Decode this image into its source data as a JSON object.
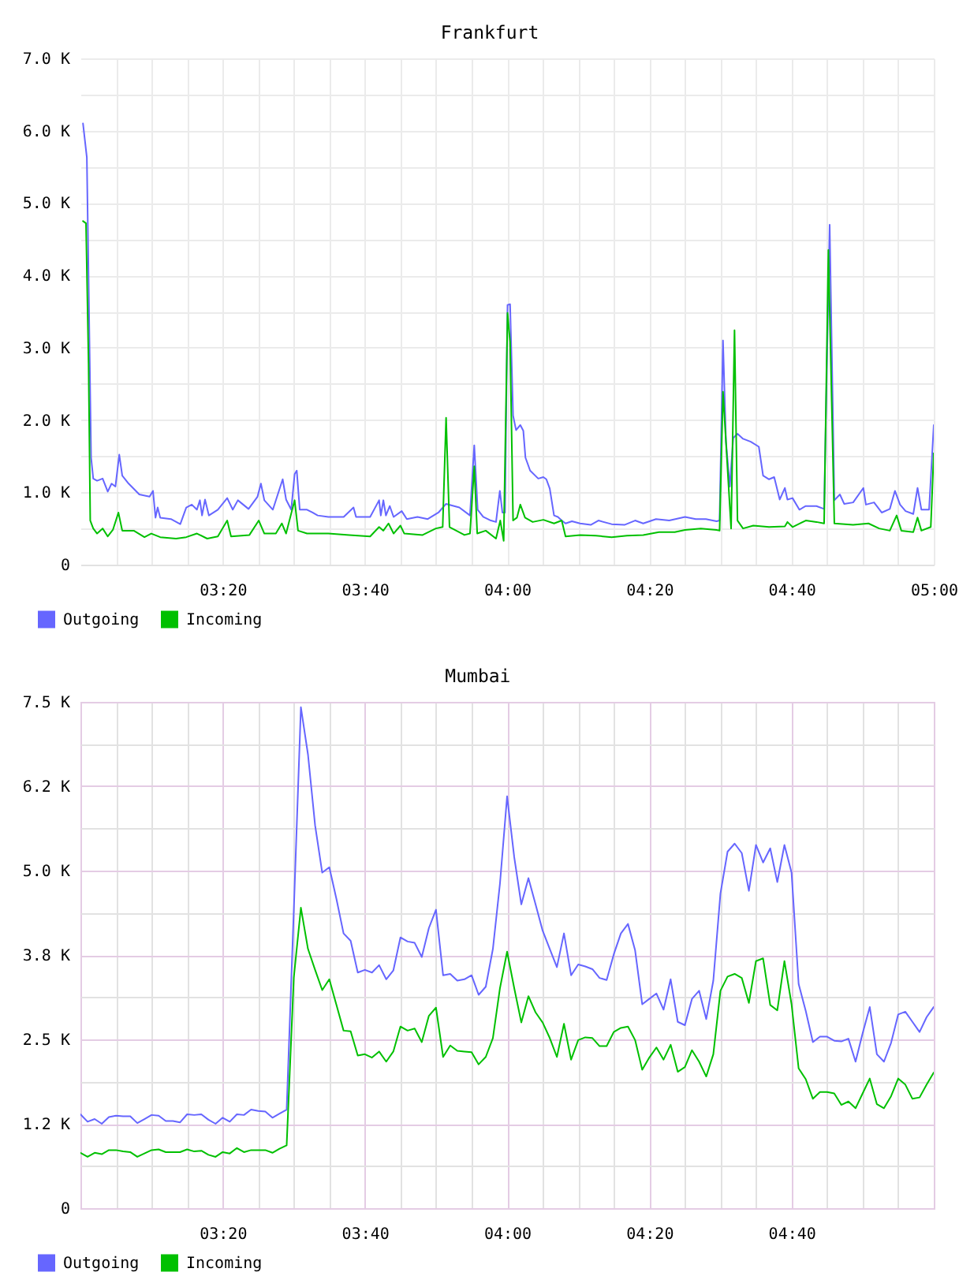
{
  "chart_data": [
    {
      "type": "line",
      "title": "Frankfurt",
      "series": [
        {
          "name": "Outgoing",
          "color": "#6666ff",
          "x": [
            3.006,
            3.015,
            3.025,
            3.03,
            3.039,
            3.052,
            3.064,
            3.073,
            3.082,
            3.091,
            3.098,
            3.113,
            3.138,
            3.162,
            3.17,
            3.176,
            3.181,
            3.187,
            3.212,
            3.234,
            3.248,
            3.261,
            3.273,
            3.28,
            3.285,
            3.292,
            3.301,
            3.322,
            3.344,
            3.357,
            3.369,
            3.394,
            3.415,
            3.423,
            3.431,
            3.451,
            3.474,
            3.482,
            3.494,
            3.502,
            3.507,
            3.514,
            3.531,
            3.544,
            3.556,
            3.581,
            3.617,
            3.64,
            3.646,
            3.679,
            3.7,
            3.704,
            3.71,
            3.716,
            3.725,
            3.734,
            3.753,
            3.765,
            3.79,
            3.814,
            3.839,
            3.857,
            3.888,
            3.913,
            3.923,
            3.931,
            3.944,
            3.962,
            3.974,
            3.983,
            3.989,
            3.995,
            4.001,
            4.007,
            4.014,
            4.021,
            4.031,
            4.038,
            4.043,
            4.054,
            4.073,
            4.085,
            4.092,
            4.1,
            4.11,
            4.119,
            4.128,
            4.137,
            4.152,
            4.171,
            4.196,
            4.214,
            4.245,
            4.275,
            4.3,
            4.319,
            4.349,
            4.38,
            4.417,
            4.442,
            4.466,
            4.491,
            4.498,
            4.506,
            4.513,
            4.522,
            4.53,
            4.54,
            4.553,
            4.571,
            4.59,
            4.6,
            4.614,
            4.626,
            4.639,
            4.651,
            4.657,
            4.669,
            4.685,
            4.7,
            4.725,
            4.743,
            4.756,
            4.767,
            4.78,
            4.79,
            4.811,
            4.835,
            4.841,
            4.86,
            4.878,
            4.897,
            4.909,
            4.921,
            4.934,
            4.952,
            4.962,
            4.971,
            4.989,
            5.0
          ],
          "values": [
            6100,
            5630,
            1480,
            1190,
            1160,
            1190,
            1010,
            1120,
            1080,
            1520,
            1230,
            1120,
            970,
            940,
            1020,
            650,
            790,
            650,
            630,
            560,
            790,
            830,
            760,
            890,
            680,
            900,
            680,
            760,
            920,
            760,
            890,
            770,
            940,
            1120,
            890,
            760,
            1180,
            900,
            760,
            1250,
            1300,
            760,
            760,
            720,
            680,
            660,
            660,
            790,
            660,
            660,
            890,
            680,
            890,
            680,
            810,
            660,
            740,
            630,
            660,
            630,
            720,
            840,
            790,
            680,
            1650,
            760,
            660,
            610,
            590,
            1020,
            720,
            720,
            3590,
            3600,
            2060,
            1860,
            1930,
            1850,
            1480,
            1300,
            1190,
            1210,
            1180,
            1050,
            680,
            660,
            610,
            570,
            600,
            570,
            550,
            610,
            560,
            550,
            610,
            570,
            630,
            610,
            660,
            630,
            630,
            600,
            610,
            3100,
            1700,
            1080,
            1750,
            1810,
            1740,
            1700,
            1630,
            1230,
            1180,
            1210,
            900,
            1060,
            900,
            920,
            760,
            810,
            810,
            770,
            4700,
            890,
            970,
            840,
            860,
            1060,
            830,
            860,
            720,
            770,
            1020,
            830,
            740,
            700,
            1060,
            760,
            760,
            1930
          ]
        },
        {
          "name": "Incoming",
          "color": "#00c000",
          "x": [
            3.006,
            3.013,
            3.019,
            3.023,
            3.03,
            3.039,
            3.052,
            3.064,
            3.076,
            3.089,
            3.098,
            3.125,
            3.15,
            3.166,
            3.187,
            3.224,
            3.248,
            3.273,
            3.297,
            3.322,
            3.344,
            3.353,
            3.396,
            3.418,
            3.431,
            3.458,
            3.472,
            3.482,
            3.502,
            3.51,
            3.531,
            3.581,
            3.63,
            3.679,
            3.7,
            3.71,
            3.722,
            3.734,
            3.75,
            3.759,
            3.802,
            3.833,
            3.849,
            3.857,
            3.865,
            3.9,
            3.913,
            3.923,
            3.93,
            3.95,
            3.974,
            3.984,
            3.992,
            4.001,
            4.007,
            4.014,
            4.023,
            4.031,
            4.042,
            4.06,
            4.085,
            4.11,
            4.128,
            4.137,
            4.171,
            4.208,
            4.245,
            4.281,
            4.319,
            4.356,
            4.393,
            4.417,
            4.454,
            4.491,
            4.498,
            4.506,
            4.525,
            4.533,
            4.54,
            4.553,
            4.577,
            4.614,
            4.651,
            4.657,
            4.669,
            4.7,
            4.725,
            4.743,
            4.753,
            4.767,
            4.811,
            4.847,
            4.872,
            4.897,
            4.913,
            4.924,
            4.952,
            4.962,
            4.971,
            4.993,
            5.0
          ],
          "values": [
            4750,
            4720,
            2790,
            610,
            500,
            430,
            500,
            390,
            480,
            720,
            470,
            470,
            380,
            430,
            380,
            360,
            380,
            430,
            360,
            390,
            610,
            390,
            410,
            610,
            430,
            430,
            570,
            430,
            890,
            470,
            430,
            430,
            410,
            390,
            520,
            470,
            570,
            430,
            540,
            430,
            410,
            500,
            520,
            2030,
            520,
            410,
            430,
            1360,
            430,
            470,
            360,
            610,
            330,
            3480,
            3080,
            610,
            650,
            830,
            650,
            590,
            620,
            570,
            610,
            390,
            410,
            400,
            380,
            400,
            410,
            450,
            450,
            480,
            500,
            480,
            470,
            2390,
            500,
            3240,
            610,
            500,
            540,
            520,
            530,
            590,
            520,
            610,
            590,
            570,
            4350,
            570,
            550,
            570,
            500,
            470,
            680,
            470,
            450,
            650,
            470,
            520,
            1540
          ]
        }
      ],
      "xlim": [
        3,
        5
      ],
      "xticks": [
        {
          "value": 3.0833,
          "label": null
        },
        {
          "value": 3.1667,
          "label": null
        },
        {
          "value": 3.25,
          "label": null
        },
        {
          "value": 3.3333,
          "label": "03:20"
        },
        {
          "value": 3.4167,
          "label": null
        },
        {
          "value": 3.5,
          "label": null
        },
        {
          "value": 3.5833,
          "label": null
        },
        {
          "value": 3.6667,
          "label": "03:40"
        },
        {
          "value": 3.75,
          "label": null
        },
        {
          "value": 3.8333,
          "label": null
        },
        {
          "value": 3.9167,
          "label": null
        },
        {
          "value": 4,
          "label": "04:00"
        },
        {
          "value": 4.0833,
          "label": null
        },
        {
          "value": 4.1667,
          "label": null
        },
        {
          "value": 4.25,
          "label": null
        },
        {
          "value": 4.3333,
          "label": "04:20"
        },
        {
          "value": 4.4167,
          "label": null
        },
        {
          "value": 4.5,
          "label": null
        },
        {
          "value": 4.5833,
          "label": null
        },
        {
          "value": 4.6667,
          "label": "04:40"
        },
        {
          "value": 4.75,
          "label": null
        },
        {
          "value": 4.8333,
          "label": null
        },
        {
          "value": 4.9167,
          "label": null
        },
        {
          "value": 5,
          "label": "05:00"
        }
      ],
      "ylim": [
        0,
        7000
      ],
      "yticks": [
        {
          "value": 0,
          "label": "0"
        },
        {
          "value": 500,
          "label": null
        },
        {
          "value": 1000,
          "label": "1.0 K"
        },
        {
          "value": 1500,
          "label": null
        },
        {
          "value": 2000,
          "label": "2.0 K"
        },
        {
          "value": 2500,
          "label": null
        },
        {
          "value": 3000,
          "label": "3.0 K"
        },
        {
          "value": 3500,
          "label": null
        },
        {
          "value": 4000,
          "label": "4.0 K"
        },
        {
          "value": 4500,
          "label": null
        },
        {
          "value": 5000,
          "label": "5.0 K"
        },
        {
          "value": 5500,
          "label": null
        },
        {
          "value": 6000,
          "label": "6.0 K"
        },
        {
          "value": 6500,
          "label": null
        },
        {
          "value": 7000,
          "label": "7.0 K"
        }
      ],
      "grid": true,
      "legend": "bottom left"
    },
    {
      "type": "line",
      "title": "Mumbai",
      "x": [
        3,
        3.0167,
        3.0333,
        3.05,
        3.0667,
        3.0833,
        3.1,
        3.1167,
        3.1333,
        3.15,
        3.1667,
        3.1833,
        3.2,
        3.2167,
        3.2333,
        3.25,
        3.2667,
        3.2833,
        3.3,
        3.3167,
        3.3333,
        3.35,
        3.3667,
        3.3833,
        3.4,
        3.4167,
        3.4333,
        3.45,
        3.4667,
        3.4833,
        3.5,
        3.5167,
        3.5333,
        3.55,
        3.5667,
        3.5833,
        3.6,
        3.6167,
        3.6333,
        3.65,
        3.6667,
        3.6833,
        3.7,
        3.7167,
        3.7333,
        3.75,
        3.7667,
        3.7833,
        3.8,
        3.8167,
        3.8333,
        3.85,
        3.8667,
        3.8833,
        3.9,
        3.9167,
        3.9333,
        3.95,
        3.9667,
        3.9833,
        4,
        4.0167,
        4.0333,
        4.05,
        4.0667,
        4.0833,
        4.1,
        4.1167,
        4.1333,
        4.15,
        4.1667,
        4.1833,
        4.2,
        4.2167,
        4.2333,
        4.25,
        4.2667,
        4.2833,
        4.3,
        4.3167,
        4.3333,
        4.35,
        4.3667,
        4.3833,
        4.4,
        4.4167,
        4.4333,
        4.45,
        4.4667,
        4.4833,
        4.5,
        4.5167,
        4.5333,
        4.55,
        4.5667,
        4.5833,
        4.6,
        4.6167,
        4.6333,
        4.65,
        4.6667,
        4.6833,
        4.7,
        4.7167,
        4.7333,
        4.75,
        4.7667,
        4.7833,
        4.8,
        4.8167,
        4.8333,
        4.85,
        4.8667,
        4.8833,
        4.9,
        4.9167,
        4.9333,
        4.95,
        4.9667,
        4.9833,
        5
      ],
      "series": [
        {
          "name": "Outgoing",
          "color": "#6666ff",
          "values": [
            1390,
            1280,
            1320,
            1250,
            1350,
            1370,
            1360,
            1360,
            1260,
            1320,
            1380,
            1370,
            1290,
            1290,
            1270,
            1390,
            1380,
            1390,
            1310,
            1250,
            1340,
            1280,
            1390,
            1380,
            1460,
            1440,
            1430,
            1340,
            1400,
            1460,
            4400,
            7420,
            6720,
            5670,
            4970,
            5050,
            4580,
            4070,
            3960,
            3490,
            3530,
            3490,
            3600,
            3390,
            3520,
            4010,
            3950,
            3930,
            3720,
            4150,
            4420,
            3450,
            3470,
            3370,
            3390,
            3450,
            3160,
            3280,
            3840,
            4810,
            6100,
            5200,
            4500,
            4890,
            4500,
            4110,
            3840,
            3570,
            4070,
            3450,
            3610,
            3580,
            3540,
            3410,
            3380,
            3760,
            4070,
            4210,
            3820,
            3020,
            3100,
            3180,
            2940,
            3390,
            2760,
            2710,
            3100,
            3220,
            2800,
            3370,
            4660,
            5280,
            5400,
            5260,
            4700,
            5380,
            5120,
            5330,
            4830,
            5380,
            4970,
            3320,
            2920,
            2460,
            2540,
            2540,
            2480,
            2470,
            2510,
            2170,
            2590,
            2980,
            2280,
            2170,
            2450,
            2870,
            2910,
            2760,
            2610,
            2830,
            2980
          ]
        },
        {
          "name": "Incoming",
          "color": "#00c000",
          "values": [
            820,
            760,
            820,
            800,
            860,
            860,
            840,
            830,
            760,
            810,
            860,
            870,
            830,
            830,
            830,
            870,
            840,
            850,
            790,
            760,
            830,
            810,
            890,
            830,
            860,
            860,
            860,
            820,
            880,
            930,
            3410,
            4450,
            3840,
            3530,
            3230,
            3390,
            3010,
            2630,
            2620,
            2260,
            2280,
            2230,
            2320,
            2170,
            2320,
            2690,
            2630,
            2660,
            2460,
            2850,
            2970,
            2240,
            2410,
            2330,
            2320,
            2310,
            2130,
            2240,
            2520,
            3260,
            3800,
            3260,
            2750,
            3140,
            2900,
            2750,
            2520,
            2240,
            2730,
            2200,
            2490,
            2530,
            2520,
            2400,
            2400,
            2610,
            2670,
            2690,
            2490,
            2050,
            2230,
            2380,
            2200,
            2420,
            2020,
            2090,
            2340,
            2170,
            1950,
            2280,
            3220,
            3430,
            3470,
            3410,
            3040,
            3660,
            3700,
            3010,
            2930,
            3660,
            3020,
            2070,
            1910,
            1620,
            1720,
            1720,
            1700,
            1530,
            1580,
            1480,
            1700,
            1920,
            1540,
            1480,
            1660,
            1920,
            1830,
            1620,
            1640,
            1830,
            2010
          ]
        }
      ],
      "xlim": [
        3,
        5
      ],
      "xticks": [
        {
          "value": 3.0833,
          "label": null
        },
        {
          "value": 3.1667,
          "label": null
        },
        {
          "value": 3.25,
          "label": null
        },
        {
          "value": 3.3333,
          "label": "03:20"
        },
        {
          "value": 3.4167,
          "label": null
        },
        {
          "value": 3.5,
          "label": null
        },
        {
          "value": 3.5833,
          "label": null
        },
        {
          "value": 3.6667,
          "label": "03:40"
        },
        {
          "value": 3.75,
          "label": null
        },
        {
          "value": 3.8333,
          "label": null
        },
        {
          "value": 3.9167,
          "label": null
        },
        {
          "value": 4,
          "label": "04:00"
        },
        {
          "value": 4.0833,
          "label": null
        },
        {
          "value": 4.1667,
          "label": null
        },
        {
          "value": 4.25,
          "label": null
        },
        {
          "value": 4.3333,
          "label": "04:20"
        },
        {
          "value": 4.4167,
          "label": null
        },
        {
          "value": 4.5,
          "label": null
        },
        {
          "value": 4.5833,
          "label": null
        },
        {
          "value": 4.6667,
          "label": "04:40"
        },
        {
          "value": 4.75,
          "label": null
        },
        {
          "value": 4.8333,
          "label": null
        },
        {
          "value": 4.9167,
          "label": null
        }
      ],
      "ylim": [
        0,
        7500
      ],
      "yticks": [
        {
          "value": 0,
          "label": "0"
        },
        {
          "value": 625,
          "label": null
        },
        {
          "value": 1250,
          "label": "1.2 K"
        },
        {
          "value": 1875,
          "label": null
        },
        {
          "value": 2500,
          "label": "2.5 K"
        },
        {
          "value": 3125,
          "label": null
        },
        {
          "value": 3750,
          "label": "3.8 K"
        },
        {
          "value": 4375,
          "label": null
        },
        {
          "value": 5000,
          "label": "5.0 K"
        },
        {
          "value": 5625,
          "label": null
        },
        {
          "value": 6250,
          "label": "6.2 K"
        },
        {
          "value": 6875,
          "label": null
        },
        {
          "value": 7500,
          "label": "7.5 K"
        }
      ],
      "grid": true,
      "legend": "bottom left"
    }
  ]
}
